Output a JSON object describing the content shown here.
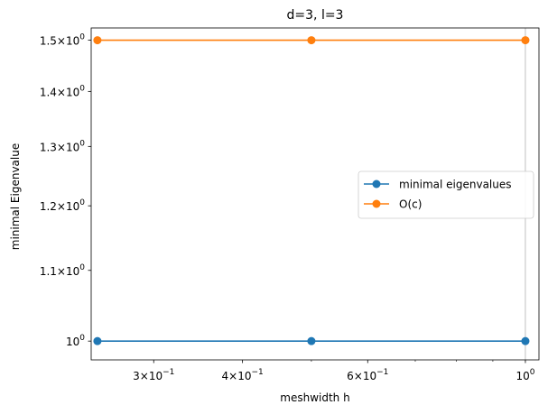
{
  "chart_data": {
    "type": "line",
    "title": "d=3, l=3",
    "xlabel": "meshwidth h",
    "ylabel": "minimal Eigenvalue",
    "xscale": "log",
    "yscale": "log",
    "xlim": [
      0.245,
      1.045
    ],
    "ylim": [
      0.975,
      1.525
    ],
    "x": [
      0.25,
      0.5,
      1.0
    ],
    "series": [
      {
        "name": "minimal eigenvalues",
        "color": "#1f77b4",
        "values": [
          1.0,
          1.0,
          1.0
        ],
        "marker": "circle"
      },
      {
        "name": "O(c)",
        "color": "#ff7f0e",
        "values": [
          1.5,
          1.5,
          1.5
        ],
        "marker": "circle"
      }
    ],
    "xticks": [
      {
        "value": 0.3,
        "mantissa": "3",
        "base": "10",
        "exp": "−1"
      },
      {
        "value": 0.4,
        "mantissa": "4",
        "base": "10",
        "exp": "−1"
      },
      {
        "value": 0.6,
        "mantissa": "6",
        "base": "10",
        "exp": "−1"
      },
      {
        "value": 1.0,
        "mantissa": "",
        "base": "10",
        "exp": "0"
      }
    ],
    "x_minor_ticks": [
      0.5,
      0.7,
      0.8,
      0.9
    ],
    "yticks": [
      {
        "value": 1.0,
        "mantissa": "",
        "base": "10",
        "exp": "0"
      },
      {
        "value": 1.1,
        "mantissa": "1.1",
        "base": "10",
        "exp": "0"
      },
      {
        "value": 1.2,
        "mantissa": "1.2",
        "base": "10",
        "exp": "0"
      },
      {
        "value": 1.3,
        "mantissa": "1.3",
        "base": "10",
        "exp": "0"
      },
      {
        "value": 1.4,
        "mantissa": "1.4",
        "base": "10",
        "exp": "0"
      },
      {
        "value": 1.5,
        "mantissa": "1.5",
        "base": "10",
        "exp": "0"
      }
    ],
    "grid": "single vertical line at x = 10^0",
    "legend": "center-right",
    "frame_color": "#000000",
    "grid_color": "#b0b0b0"
  }
}
